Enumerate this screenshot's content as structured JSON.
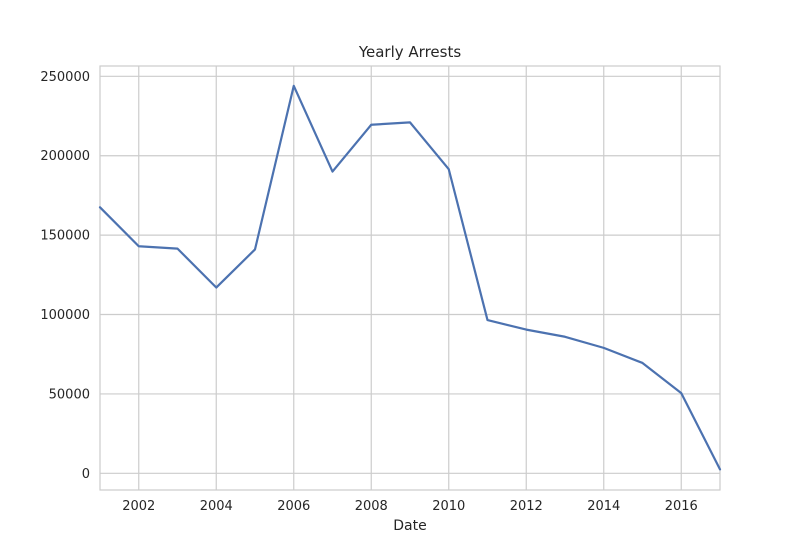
{
  "chart_data": {
    "type": "line",
    "title": "Yearly Arrests",
    "xlabel": "Date",
    "ylabel": "",
    "x": [
      2001,
      2002,
      2003,
      2004,
      2005,
      2006,
      2007,
      2008,
      2009,
      2010,
      2011,
      2012,
      2013,
      2014,
      2015,
      2016,
      2017
    ],
    "series": [
      {
        "values": [
          167500,
          143000,
          141500,
          117000,
          141000,
          244000,
          190000,
          219500,
          221000,
          191500,
          96500,
          90500,
          86000,
          79000,
          69500,
          50500,
          2500
        ],
        "color": "#4c72b0"
      }
    ],
    "xlim": [
      2001,
      2017
    ],
    "ylim": [
      -10500,
      256500
    ],
    "xticks": [
      2002,
      2004,
      2006,
      2008,
      2010,
      2012,
      2014,
      2016
    ],
    "xtick_labels": [
      "2002",
      "2004",
      "2006",
      "2008",
      "2010",
      "2012",
      "2014",
      "2016"
    ],
    "yticks": [
      0,
      50000,
      100000,
      150000,
      200000,
      250000
    ],
    "ytick_labels": [
      "0",
      "50000",
      "100000",
      "150000",
      "200000",
      "250000"
    ],
    "grid": true,
    "legend": "none"
  }
}
